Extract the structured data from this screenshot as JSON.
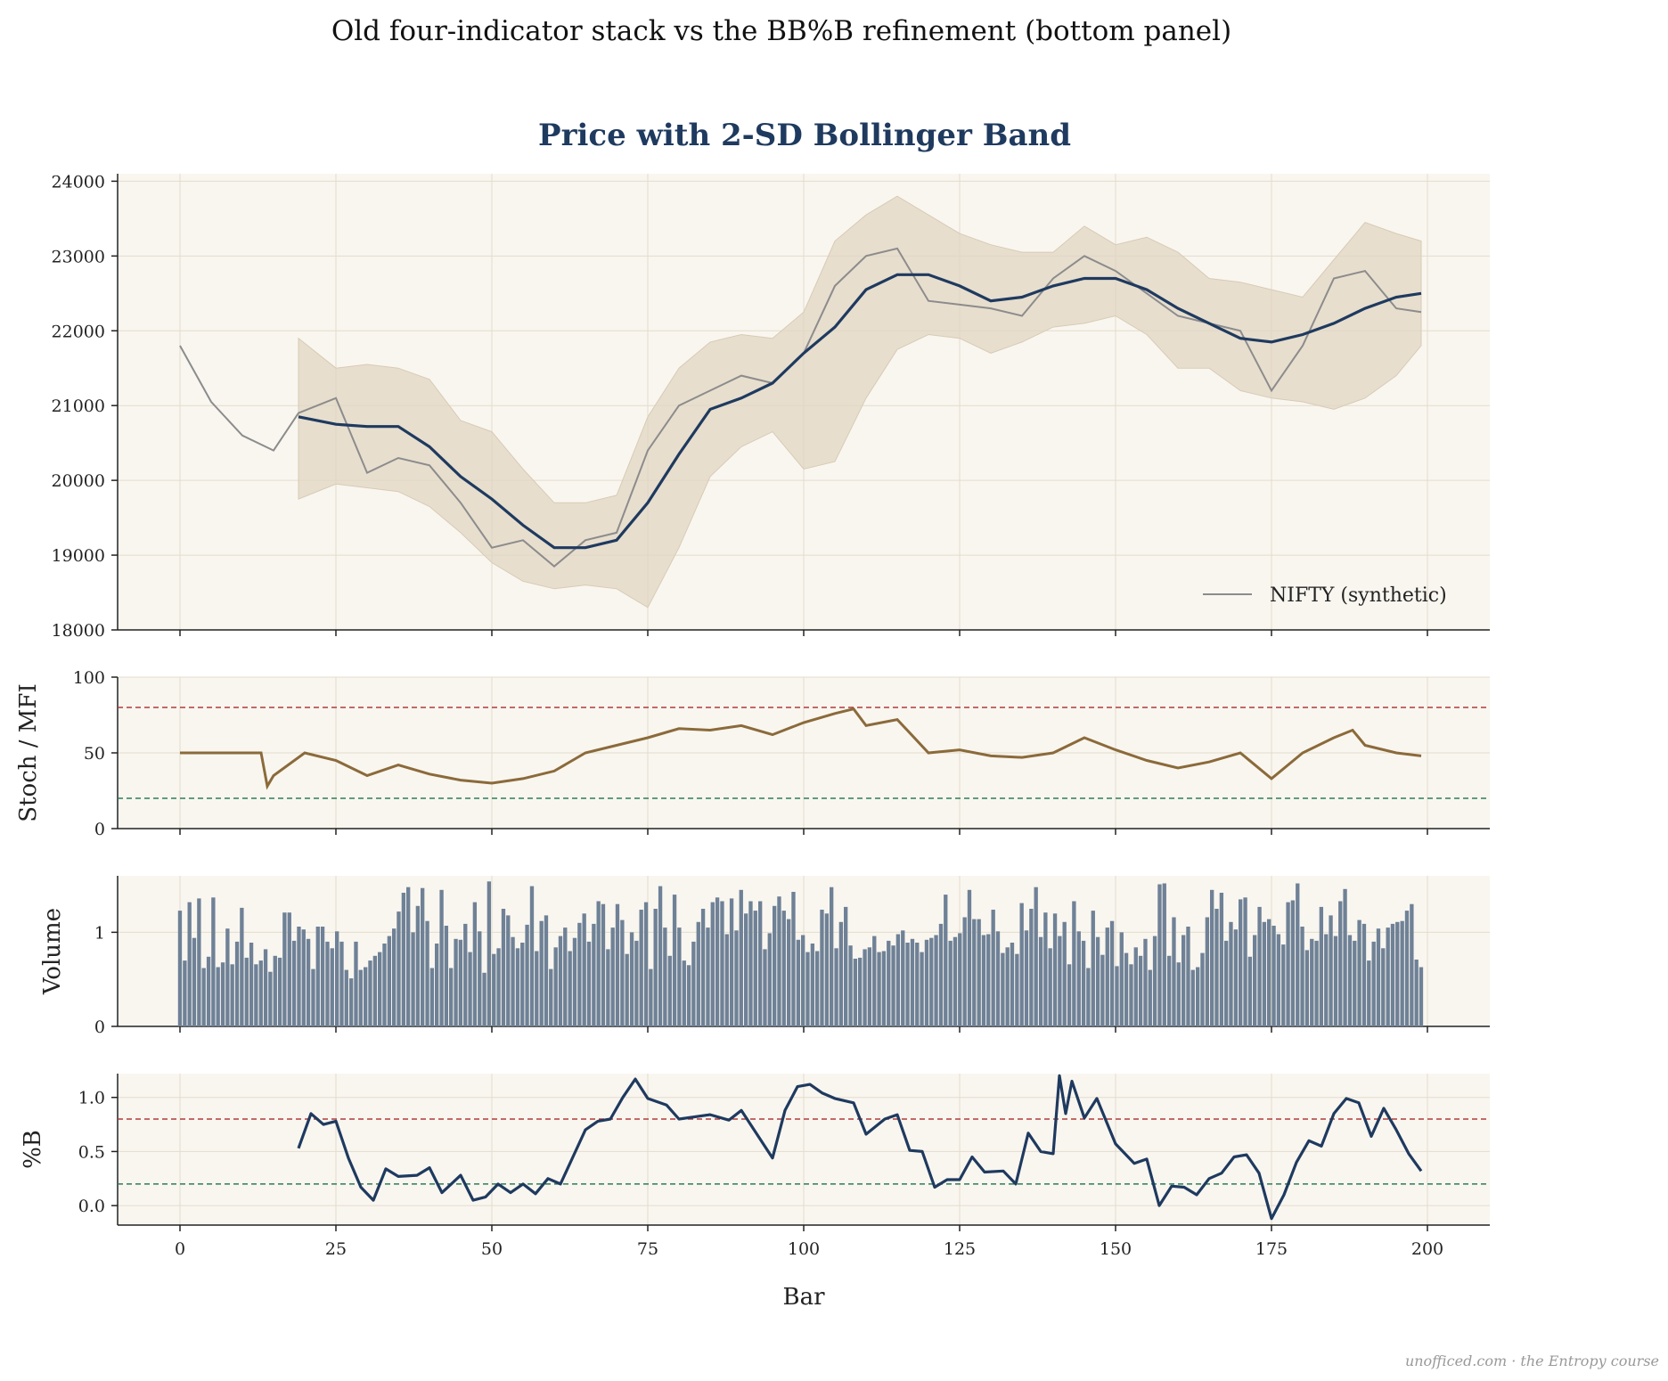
{
  "colors": {
    "panel_bg": "#f9f6f0",
    "grid": "#e4dccb",
    "axis": "#222222",
    "navy": "#1f3a5f",
    "price": "#8c8c8c",
    "band": "#e0d5c3",
    "band_edge": "#d8cbb4",
    "brown": "#8b6a3a",
    "red_dash": "#b03a3a",
    "green_dash": "#2e7d55",
    "volume_bar": "#6f8196"
  },
  "suptitle": "Old four-indicator stack vs the BB%B refinement (bottom panel)",
  "footer": "unofficed.com · the Entropy course",
  "chart_data": [
    {
      "type": "line",
      "panel": "price",
      "title": "Price with 2-SD Bollinger Band",
      "xlabel": "",
      "ylabel": "",
      "xlim": [
        -10,
        210
      ],
      "ylim": [
        18000,
        24100
      ],
      "yticks": [
        18000,
        19000,
        20000,
        21000,
        22000,
        23000,
        24000
      ],
      "grid": true,
      "legend": "lower-right",
      "x": [
        0,
        5,
        10,
        15,
        19,
        25,
        30,
        35,
        40,
        45,
        50,
        55,
        60,
        65,
        70,
        75,
        80,
        85,
        90,
        95,
        100,
        105,
        110,
        115,
        120,
        125,
        130,
        135,
        140,
        145,
        150,
        155,
        160,
        165,
        170,
        175,
        180,
        185,
        190,
        195,
        199
      ],
      "series": [
        {
          "name": "NIFTY (synthetic)",
          "role": "price",
          "values": [
            21800,
            21050,
            20600,
            20400,
            20900,
            21100,
            20100,
            20300,
            20200,
            19700,
            19100,
            19200,
            18850,
            19200,
            19300,
            20400,
            21000,
            21200,
            21400,
            21300,
            21700,
            22600,
            23000,
            23100,
            22400,
            22350,
            22300,
            22200,
            22700,
            23000,
            22800,
            22500,
            22200,
            22100,
            22000,
            21200,
            21800,
            22700,
            22800,
            22300,
            22250
          ]
        },
        {
          "role": "sma",
          "values": [
            null,
            null,
            null,
            null,
            20850,
            20750,
            20720,
            20720,
            20450,
            20050,
            19750,
            19400,
            19100,
            19100,
            19200,
            19700,
            20350,
            20950,
            21100,
            21300,
            21700,
            22050,
            22550,
            22750,
            22750,
            22600,
            22400,
            22450,
            22600,
            22700,
            22700,
            22550,
            22300,
            22100,
            21900,
            21850,
            21950,
            22100,
            22300,
            22450,
            22500
          ]
        },
        {
          "role": "band_upper",
          "values": [
            null,
            null,
            null,
            null,
            21900,
            21500,
            21550,
            21500,
            21350,
            20800,
            20650,
            20150,
            19700,
            19700,
            19800,
            20850,
            21500,
            21850,
            21950,
            21900,
            22250,
            23200,
            23550,
            23800,
            23550,
            23300,
            23150,
            23050,
            23050,
            23400,
            23150,
            23250,
            23050,
            22700,
            22650,
            22550,
            22450,
            22950,
            23450,
            23300,
            23200
          ]
        },
        {
          "role": "band_lower",
          "values": [
            null,
            null,
            null,
            null,
            19750,
            19950,
            19900,
            19850,
            19650,
            19300,
            18900,
            18650,
            18550,
            18600,
            18550,
            18300,
            19100,
            20050,
            20450,
            20650,
            20150,
            20250,
            21100,
            21750,
            21950,
            21900,
            21700,
            21850,
            22050,
            22100,
            22200,
            21950,
            21500,
            21500,
            21200,
            21100,
            21050,
            20950,
            21100,
            21400,
            21800
          ]
        }
      ]
    },
    {
      "type": "line",
      "panel": "stoch",
      "ylabel": "Stoch / MFI",
      "ylim": [
        0,
        100
      ],
      "yticks": [
        0,
        50,
        100
      ],
      "reference_lines": [
        80,
        20
      ],
      "x": [
        0,
        13,
        14,
        15,
        20,
        25,
        30,
        35,
        40,
        45,
        50,
        55,
        60,
        65,
        70,
        75,
        80,
        85,
        90,
        95,
        100,
        105,
        108,
        110,
        115,
        120,
        125,
        130,
        135,
        140,
        145,
        150,
        155,
        160,
        165,
        170,
        175,
        180,
        185,
        188,
        190,
        195,
        199
      ],
      "series": [
        {
          "values": [
            50,
            50,
            28,
            35,
            50,
            45,
            35,
            42,
            36,
            32,
            30,
            33,
            38,
            50,
            55,
            60,
            66,
            65,
            68,
            62,
            70,
            76,
            79,
            68,
            72,
            50,
            52,
            48,
            47,
            50,
            60,
            52,
            45,
            40,
            44,
            50,
            33,
            50,
            60,
            65,
            55,
            50,
            48
          ]
        }
      ]
    },
    {
      "type": "bar",
      "panel": "volume",
      "ylabel": "Volume",
      "ylim": [
        0,
        1.6
      ],
      "yticks": [
        0,
        1
      ],
      "x_start": 0,
      "values": [
        1.23,
        0.7,
        1.32,
        0.94,
        1.36,
        0.62,
        0.74,
        1.37,
        0.63,
        0.68,
        1.04,
        0.66,
        0.9,
        1.26,
        0.73,
        0.89,
        0.66,
        0.7,
        0.82,
        0.58,
        0.75,
        0.73,
        1.21,
        1.21,
        0.91,
        1.06,
        1.03,
        0.93,
        0.61,
        1.06,
        1.06,
        0.9,
        0.83,
        1.01,
        0.9,
        0.6,
        0.51,
        0.9,
        0.6,
        0.63,
        0.7,
        0.75,
        0.79,
        0.88,
        0.96,
        1.04,
        1.22,
        1.42,
        1.48,
        1.0,
        1.28,
        1.47,
        1.12,
        0.62,
        0.88,
        1.45,
        1.07,
        0.62,
        0.93,
        0.92,
        1.09,
        0.79,
        1.32,
        1.01,
        0.57,
        1.54,
        0.77,
        0.83,
        1.25,
        1.18,
        0.95,
        0.83,
        0.89,
        1.08,
        1.49,
        0.8,
        1.12,
        1.18,
        0.61,
        0.84,
        0.96,
        1.05,
        0.8,
        0.94,
        1.1,
        1.2,
        0.9,
        1.09,
        1.33,
        1.3,
        0.82,
        1.05,
        1.3,
        1.13,
        0.77,
        1.0,
        0.91,
        1.24,
        1.32,
        0.61,
        1.25,
        1.49,
        1.05,
        0.75,
        1.4,
        1.05,
        0.7,
        0.65,
        0.9,
        1.11,
        1.25,
        1.05,
        1.32,
        1.37,
        1.33,
        0.98,
        1.36,
        1.02,
        1.45,
        1.2,
        1.33,
        1.23,
        1.33,
        0.82,
        0.99,
        1.28,
        1.38,
        1.23,
        1.14,
        1.43,
        0.92,
        0.97,
        0.79,
        0.88,
        0.8,
        1.24,
        1.2,
        1.48,
        0.83,
        1.11,
        1.27,
        0.86,
        0.72,
        0.73,
        0.82,
        0.84,
        0.96,
        0.79,
        0.8,
        0.91,
        0.86,
        0.98,
        1.02,
        0.89,
        0.93,
        0.89,
        0.79,
        0.92,
        0.94,
        0.97,
        1.09,
        1.4,
        0.91,
        0.95,
        0.99,
        1.16,
        1.45,
        1.14,
        1.14,
        0.97,
        0.98,
        1.24,
        1.01,
        0.78,
        0.84,
        0.89,
        0.77,
        1.31,
        1.02,
        1.25,
        1.48,
        0.95,
        1.21,
        0.83,
        1.2,
        0.96,
        1.11,
        0.66,
        1.33,
        1.01,
        0.91,
        0.62,
        1.23,
        0.95,
        0.76,
        1.05,
        1.12,
        0.64,
        1.0,
        0.78,
        0.66,
        0.84,
        0.75,
        0.93,
        0.6,
        0.96,
        1.51,
        1.52,
        0.75,
        1.16,
        0.68,
        0.97,
        1.06,
        0.6,
        0.63,
        0.78,
        1.16,
        1.45,
        1.25,
        1.42,
        0.91,
        1.11,
        1.03,
        1.35,
        1.37,
        0.74,
        0.97,
        1.27,
        1.11,
        1.14,
        1.07,
        0.98,
        0.87,
        1.32,
        1.34,
        1.52,
        1.06,
        0.81,
        0.93,
        0.91,
        1.27,
        0.98,
        1.18,
        0.96,
        1.33,
        1.46,
        0.97,
        0.91,
        1.13,
        1.09,
        0.7,
        0.9,
        1.04,
        0.83,
        1.05,
        1.09,
        1.11,
        1.12,
        1.23,
        1.3,
        0.71,
        0.63
      ]
    },
    {
      "type": "line",
      "panel": "pctb",
      "ylabel": "%B",
      "xlabel": "Bar",
      "xlim": [
        -10,
        210
      ],
      "xticks": [
        0,
        25,
        50,
        75,
        100,
        125,
        150,
        175,
        200
      ],
      "ylim": [
        -0.18,
        1.22
      ],
      "yticks": [
        0.0,
        0.5,
        1.0
      ],
      "ytick_labels": [
        "0.0",
        "0.5",
        "1.0"
      ],
      "reference_lines": [
        0.8,
        0.2
      ],
      "x": [
        19,
        21,
        23,
        25,
        27,
        29,
        31,
        33,
        35,
        38,
        40,
        42,
        45,
        47,
        49,
        51,
        53,
        55,
        57,
        59,
        61,
        63,
        65,
        67,
        69,
        71,
        73,
        75,
        78,
        80,
        85,
        88,
        90,
        95,
        97,
        99,
        101,
        103,
        105,
        108,
        110,
        113,
        115,
        117,
        119,
        121,
        123,
        125,
        127,
        129,
        132,
        134,
        136,
        138,
        140,
        141,
        142,
        143,
        145,
        147,
        150,
        153,
        155,
        157,
        159,
        161,
        163,
        165,
        167,
        169,
        171,
        173,
        175,
        177,
        179,
        181,
        183,
        185,
        187,
        189,
        191,
        193,
        195,
        197,
        199
      ],
      "series": [
        {
          "values": [
            0.53,
            0.85,
            0.75,
            0.78,
            0.44,
            0.17,
            0.05,
            0.34,
            0.27,
            0.28,
            0.35,
            0.12,
            0.28,
            0.05,
            0.08,
            0.2,
            0.12,
            0.2,
            0.11,
            0.25,
            0.2,
            0.45,
            0.7,
            0.78,
            0.8,
            1.0,
            1.17,
            0.99,
            0.93,
            0.8,
            0.84,
            0.79,
            0.88,
            0.44,
            0.88,
            1.1,
            1.12,
            1.04,
            0.99,
            0.95,
            0.66,
            0.8,
            0.84,
            0.51,
            0.5,
            0.17,
            0.24,
            0.24,
            0.45,
            0.31,
            0.32,
            0.2,
            0.67,
            0.5,
            0.48,
            1.2,
            0.85,
            1.15,
            0.81,
            0.99,
            0.57,
            0.39,
            0.43,
            0.0,
            0.18,
            0.17,
            0.1,
            0.25,
            0.3,
            0.45,
            0.47,
            0.3,
            -0.12,
            0.1,
            0.4,
            0.6,
            0.55,
            0.85,
            0.99,
            0.95,
            0.64,
            0.9,
            0.7,
            0.48,
            0.32
          ]
        }
      ]
    }
  ]
}
